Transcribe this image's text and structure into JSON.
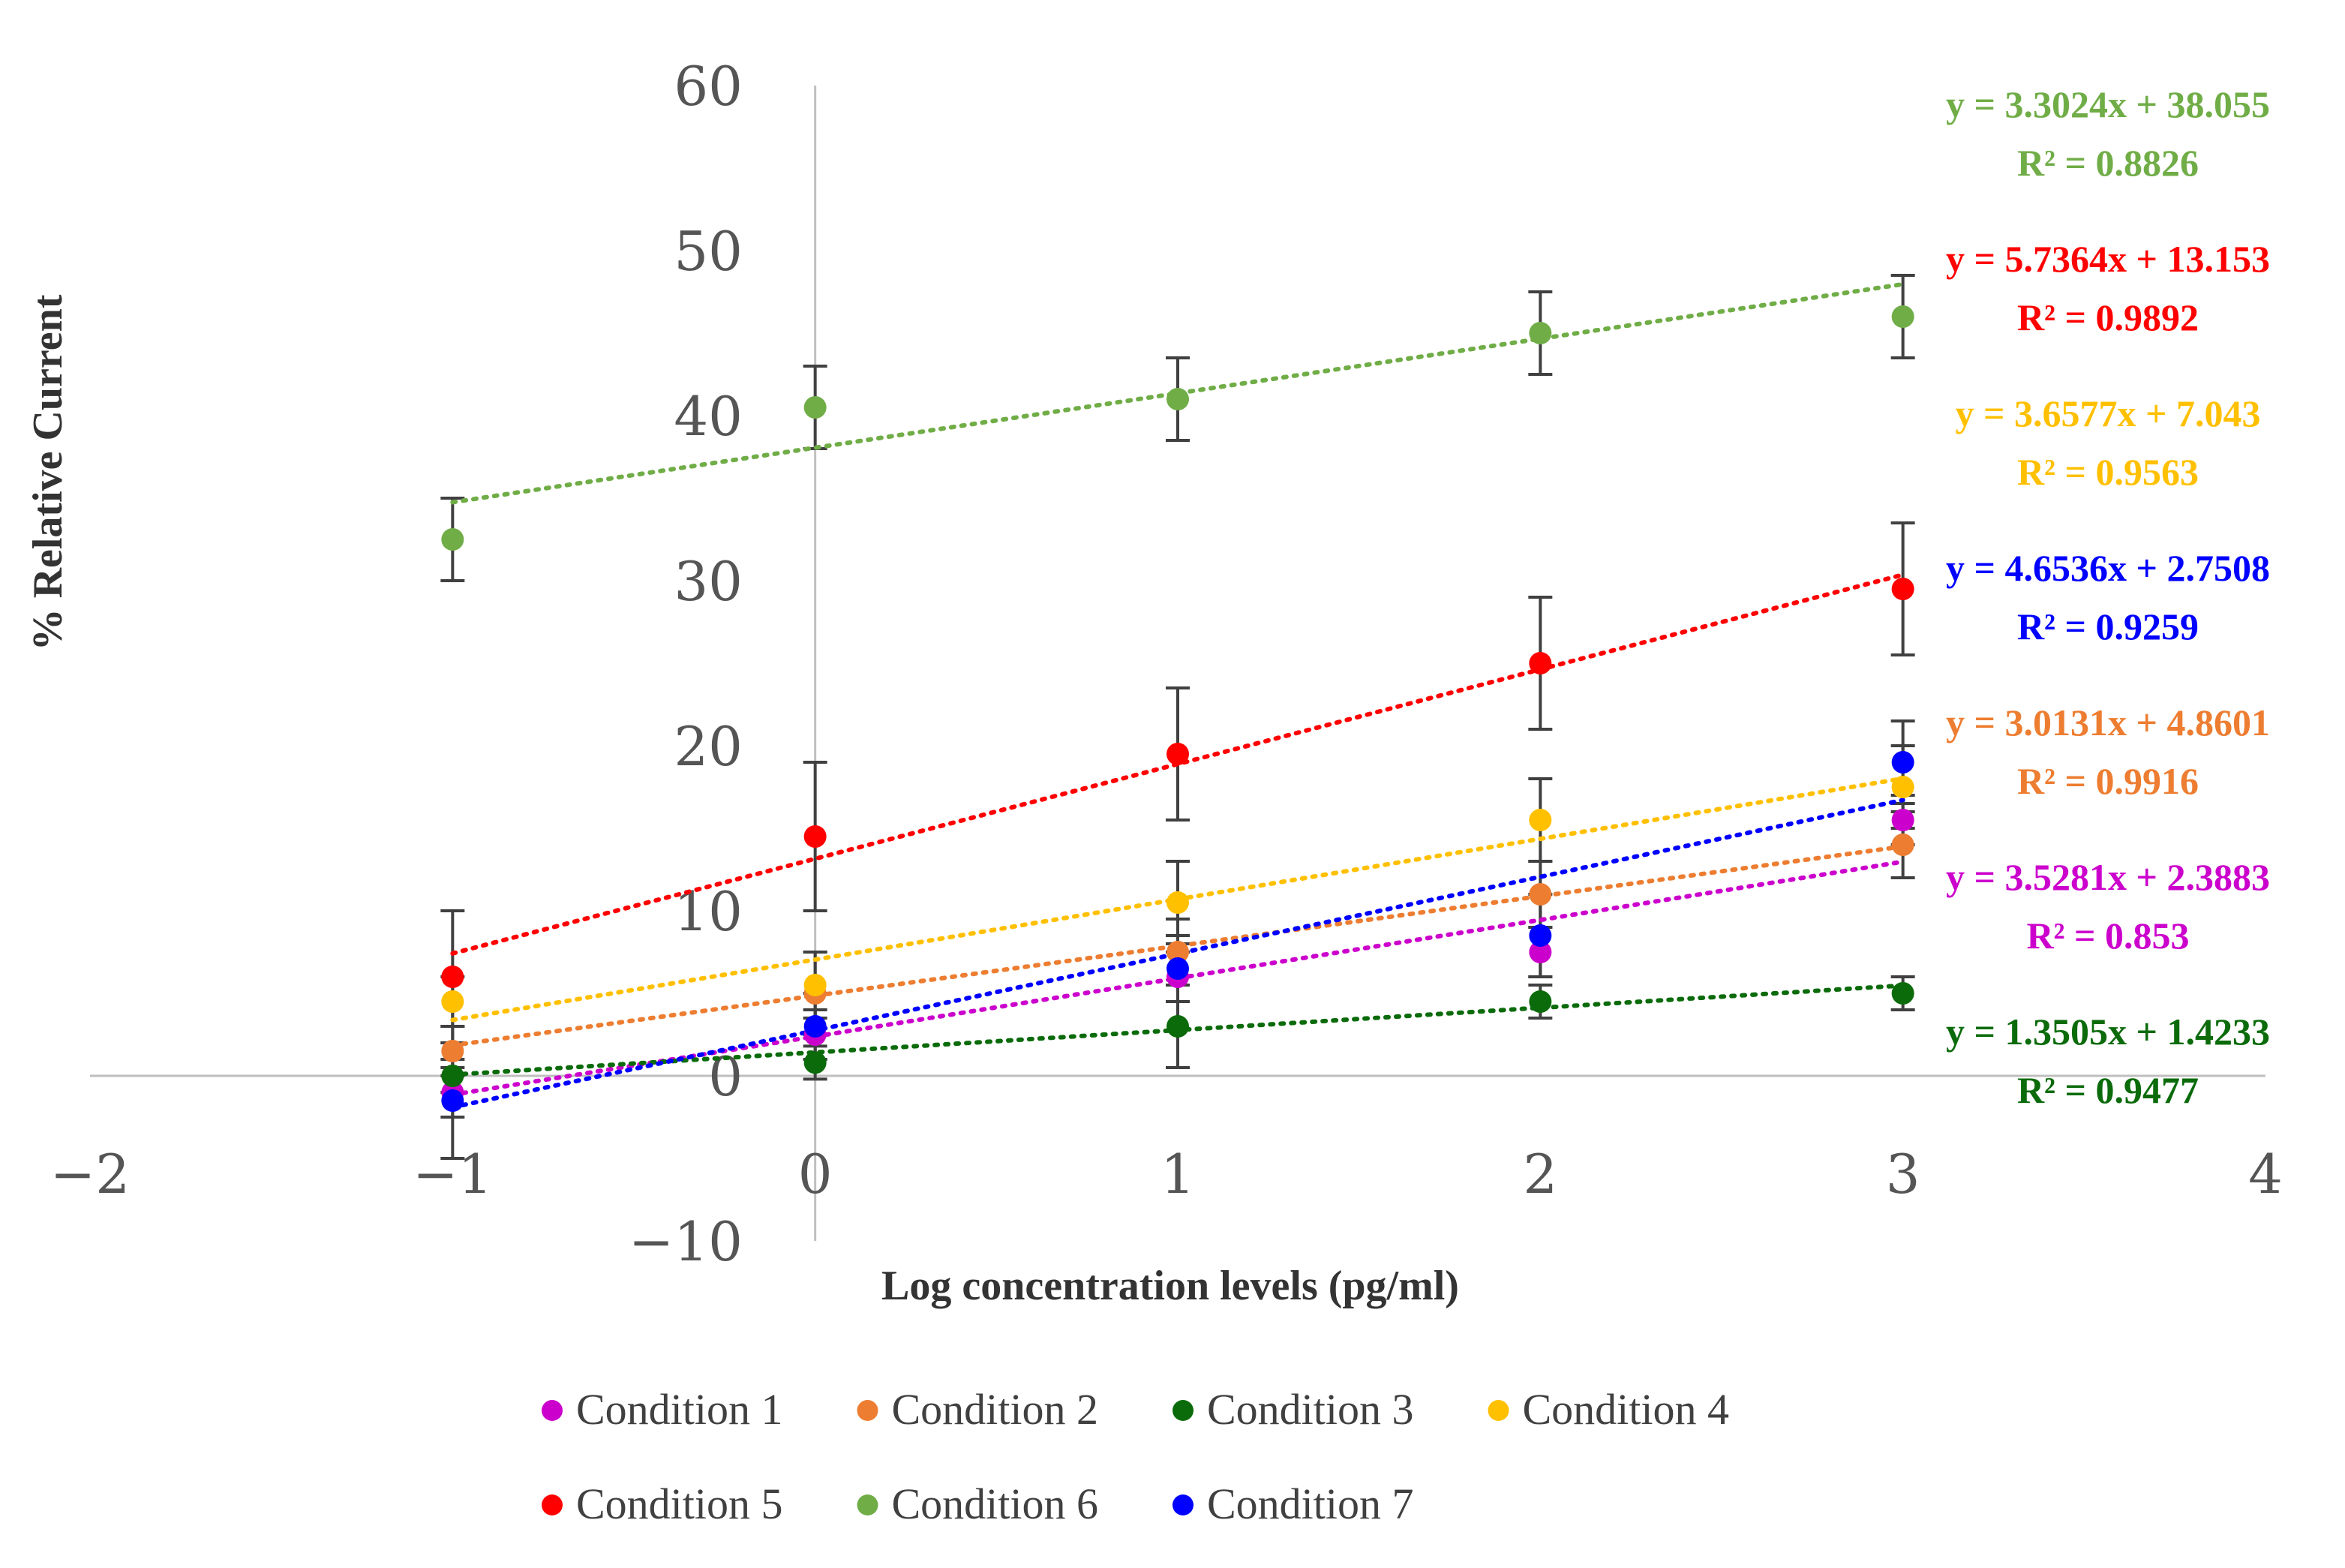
{
  "chart_data": {
    "type": "scatter",
    "title": "",
    "xlabel": "Log concentration levels (pg/ml)",
    "ylabel": "% Relative Current",
    "xlim": [
      -2,
      4
    ],
    "ylim": [
      -10,
      60
    ],
    "xticks": [
      -2,
      -1,
      0,
      1,
      2,
      3,
      4
    ],
    "yticks": [
      -10,
      0,
      10,
      20,
      30,
      40,
      50,
      60
    ],
    "xtick_labels": [
      "−2",
      "−1",
      "0",
      "1",
      "2",
      "3",
      "4"
    ],
    "ytick_labels": [
      "−10",
      "0",
      "10",
      "20",
      "30",
      "40",
      "50",
      "60"
    ],
    "grid": false,
    "legend_position": "bottom",
    "series": [
      {
        "name": "Condition 1",
        "color": "#CC00CC",
        "x": [
          -1,
          0,
          1,
          2,
          3
        ],
        "y": [
          -1.0,
          2.5,
          6.0,
          7.5,
          15.5
        ],
        "err": [
          1.5,
          1.5,
          1.5,
          1.5,
          1.5
        ],
        "fit": {
          "slope": 3.5281,
          "intercept": 2.3883
        },
        "equation": "y = 3.5281x + 2.3883",
        "r2": "R² = 0.853"
      },
      {
        "name": "Condition 2",
        "color": "#ED7D31",
        "x": [
          -1,
          0,
          1,
          2,
          3
        ],
        "y": [
          1.5,
          5.0,
          7.5,
          11.0,
          14.0
        ],
        "err": [
          1.5,
          2.5,
          2.0,
          2.0,
          2.0
        ],
        "fit": {
          "slope": 3.0131,
          "intercept": 4.8601
        },
        "equation": "y = 3.0131x + 4.8601",
        "r2": "R² = 0.9916"
      },
      {
        "name": "Condition 3",
        "color": "#0B6B0B",
        "x": [
          -1,
          0,
          1,
          2,
          3
        ],
        "y": [
          0.0,
          0.8,
          3.0,
          4.5,
          5.0
        ],
        "err": [
          1.0,
          1.0,
          2.5,
          1.0,
          1.0
        ],
        "fit": {
          "slope": 1.3505,
          "intercept": 1.4233
        },
        "equation": "y = 1.3505x + 1.4233",
        "r2": "R² = 0.9477"
      },
      {
        "name": "Condition 4",
        "color": "#FFC000",
        "x": [
          -1,
          0,
          1,
          2,
          3
        ],
        "y": [
          4.5,
          5.5,
          10.5,
          15.5,
          17.5
        ],
        "err": [
          1.5,
          2.0,
          2.5,
          2.5,
          2.5
        ],
        "fit": {
          "slope": 3.6577,
          "intercept": 7.043
        },
        "equation": "y = 3.6577x + 7.043",
        "r2": "R² = 0.9563"
      },
      {
        "name": "Condition 5",
        "color": "#FF0000",
        "x": [
          -1,
          0,
          1,
          2,
          3
        ],
        "y": [
          6.0,
          14.5,
          19.5,
          25.0,
          29.5
        ],
        "err": [
          4.0,
          4.5,
          4.0,
          4.0,
          4.0
        ],
        "fit": {
          "slope": 5.7364,
          "intercept": 13.153
        },
        "equation": "y = 5.7364x + 13.153",
        "r2": "R² = 0.9892"
      },
      {
        "name": "Condition 6",
        "color": "#70AD47",
        "x": [
          -1,
          0,
          1,
          2,
          3
        ],
        "y": [
          32.5,
          40.5,
          41.0,
          45.0,
          46.0
        ],
        "err": [
          2.5,
          2.5,
          2.5,
          2.5,
          2.5
        ],
        "fit": {
          "slope": 3.3024,
          "intercept": 38.055
        },
        "equation": "y = 3.3024x + 38.055",
        "r2": "R² = 0.8826"
      },
      {
        "name": "Condition 7",
        "color": "#0000FF",
        "x": [
          -1,
          0,
          1,
          2,
          3
        ],
        "y": [
          -1.5,
          3.0,
          6.5,
          8.5,
          19.0
        ],
        "err": [
          3.5,
          2.0,
          2.0,
          2.5,
          2.5
        ],
        "fit": {
          "slope": 4.6536,
          "intercept": 2.7508
        },
        "equation": "y = 4.6536x + 2.7508",
        "r2": "R² = 0.9259"
      }
    ],
    "annotation_order": [
      "Condition 6",
      "Condition 5",
      "Condition 4",
      "Condition 7",
      "Condition 2",
      "Condition 1",
      "Condition 3"
    ],
    "legend_rows": [
      [
        "Condition 1",
        "Condition 2",
        "Condition 3",
        "Condition 4"
      ],
      [
        "Condition 5",
        "Condition 6",
        "Condition 7"
      ]
    ]
  }
}
